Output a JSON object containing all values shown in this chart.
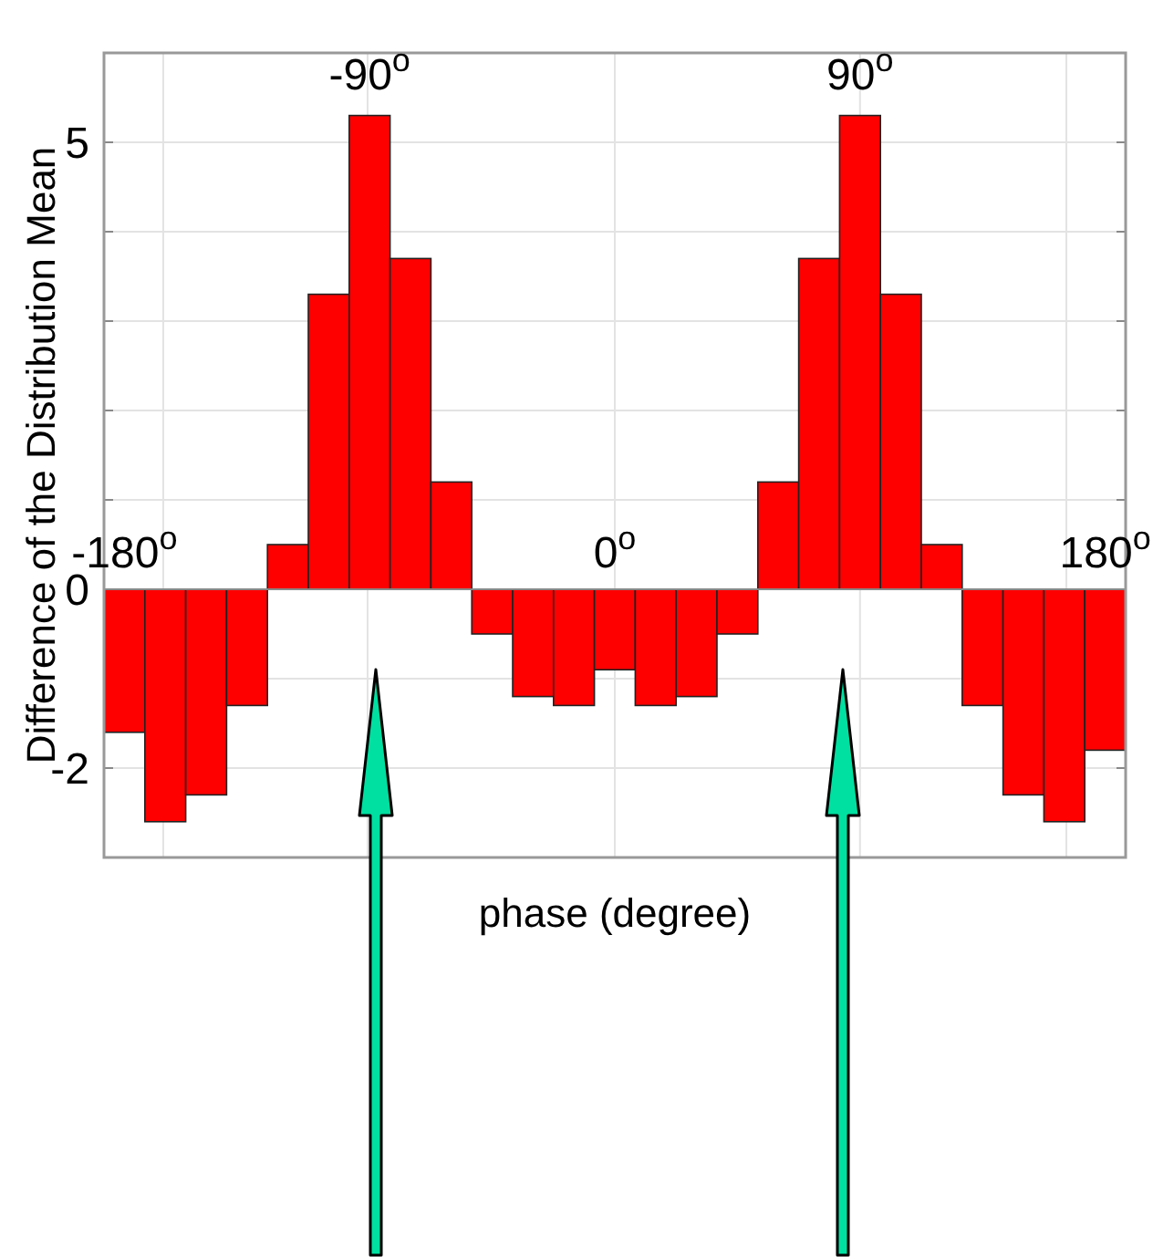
{
  "chart_data": {
    "type": "bar",
    "xlabel": "phase (degree)",
    "ylabel": "Difference of the Distribution Mean",
    "categories": [
      null,
      null,
      null,
      null,
      null,
      null,
      null,
      null,
      null,
      null,
      null,
      null,
      null,
      null,
      null,
      null,
      null,
      null,
      null,
      null,
      null,
      null,
      null,
      null,
      null
    ],
    "values": [
      -1.6,
      -2.6,
      -2.3,
      -1.3,
      0.5,
      3.3,
      5.3,
      3.7,
      1.2,
      -0.5,
      -1.2,
      -1.3,
      -0.9,
      -1.3,
      -1.2,
      -0.5,
      1.2,
      3.7,
      5.3,
      3.3,
      0.5,
      -1.3,
      -2.3,
      -2.6,
      -1.8
    ],
    "color": "#ff0000",
    "ylim": [
      -3,
      6
    ],
    "yticks": [
      {
        "value": -3,
        "label": null
      },
      -2,
      {
        "value": -1,
        "label": null
      },
      0,
      {
        "value": 1,
        "label": null
      },
      {
        "value": 2,
        "label": null
      },
      {
        "value": 3,
        "label": null
      },
      {
        "value": 4,
        "label": null
      },
      5,
      {
        "value": 6,
        "label": null
      }
    ],
    "grid": true,
    "annotations": [
      "-180$^{o}$",
      "-90$^{o}$",
      "0$^{o}$",
      "90$^{o}$",
      "180$^{o}$"
    ]
  }
}
